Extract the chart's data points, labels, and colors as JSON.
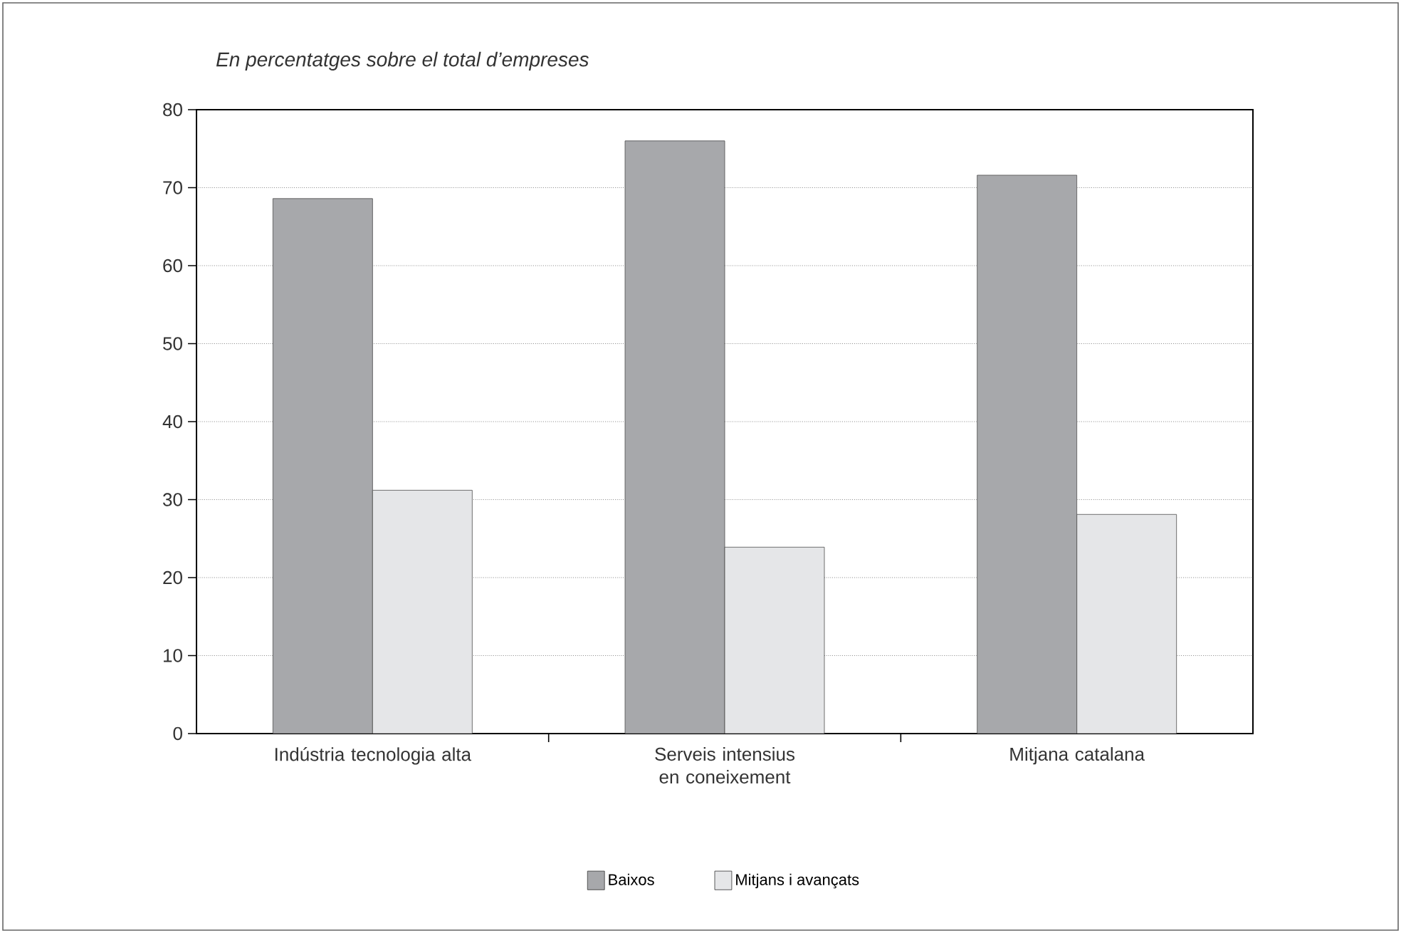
{
  "chart_data": {
    "type": "bar",
    "title": "En percentatges sobre el total d’empreses",
    "categories": [
      "Indústria tecnologia alta",
      "Serveis intensius en coneixement",
      "Mitjana catalana"
    ],
    "series": [
      {
        "name": "Baixos",
        "color": "#a7a8ab",
        "values": [
          68.6,
          76.0,
          71.6
        ]
      },
      {
        "name": "Mitjans i avançats",
        "color": "#e5e6e8",
        "values": [
          31.2,
          23.9,
          28.1
        ]
      }
    ],
    "ylim": [
      0,
      80
    ],
    "yticks": [
      0,
      10,
      20,
      30,
      40,
      50,
      60,
      70,
      80
    ],
    "grid": "y",
    "legend": "bottom"
  }
}
